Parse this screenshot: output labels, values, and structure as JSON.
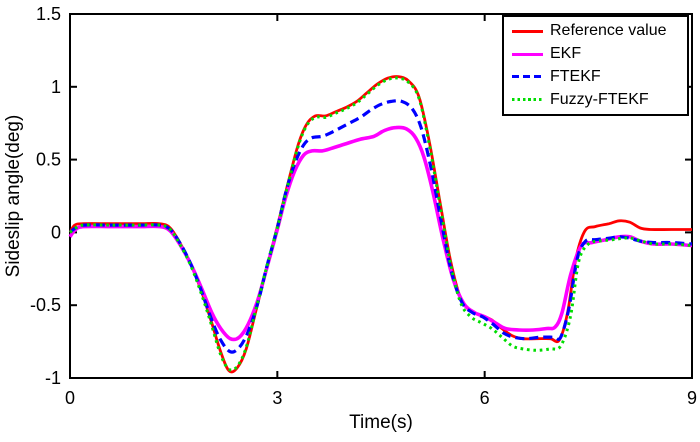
{
  "chart_data": {
    "type": "line",
    "xlabel": "Time(s)",
    "ylabel": "Sideslip angle(deg)",
    "xlim": [
      0,
      9
    ],
    "ylim": [
      -1,
      1.5
    ],
    "xticks": [
      0,
      3,
      6,
      9
    ],
    "yticks": [
      -1,
      -0.5,
      0,
      0.5,
      1,
      1.5
    ],
    "grid": false,
    "axis_color": "#000000",
    "background": "#ffffff",
    "legend": {
      "position": "top-right",
      "border_color": "#000000",
      "background": "#ffffff"
    },
    "series": [
      {
        "id": "reference-value",
        "name": "Reference value",
        "color": "#ff0000",
        "line_style": "solid",
        "width": 2.8,
        "points": [
          [
            0,
            0
          ],
          [
            0.07,
            0.05
          ],
          [
            0.2,
            0.06
          ],
          [
            0.6,
            0.06
          ],
          [
            1.0,
            0.06
          ],
          [
            1.3,
            0.06
          ],
          [
            1.45,
            0.03
          ],
          [
            1.6,
            -0.08
          ],
          [
            1.75,
            -0.22
          ],
          [
            1.9,
            -0.4
          ],
          [
            2.05,
            -0.62
          ],
          [
            2.18,
            -0.82
          ],
          [
            2.3,
            -0.95
          ],
          [
            2.42,
            -0.93
          ],
          [
            2.55,
            -0.8
          ],
          [
            2.7,
            -0.52
          ],
          [
            2.85,
            -0.24
          ],
          [
            3.0,
            0.04
          ],
          [
            3.15,
            0.33
          ],
          [
            3.3,
            0.6
          ],
          [
            3.42,
            0.74
          ],
          [
            3.55,
            0.8
          ],
          [
            3.7,
            0.8
          ],
          [
            3.85,
            0.83
          ],
          [
            4.0,
            0.86
          ],
          [
            4.15,
            0.9
          ],
          [
            4.3,
            0.96
          ],
          [
            4.45,
            1.02
          ],
          [
            4.6,
            1.06
          ],
          [
            4.75,
            1.07
          ],
          [
            4.9,
            1.04
          ],
          [
            5.05,
            0.93
          ],
          [
            5.2,
            0.62
          ],
          [
            5.35,
            0.22
          ],
          [
            5.5,
            -0.18
          ],
          [
            5.65,
            -0.45
          ],
          [
            5.8,
            -0.54
          ],
          [
            5.95,
            -0.57
          ],
          [
            6.1,
            -0.6
          ],
          [
            6.25,
            -0.66
          ],
          [
            6.4,
            -0.71
          ],
          [
            6.55,
            -0.73
          ],
          [
            6.75,
            -0.73
          ],
          [
            6.95,
            -0.73
          ],
          [
            7.08,
            -0.74
          ],
          [
            7.2,
            -0.55
          ],
          [
            7.32,
            -0.18
          ],
          [
            7.45,
            0.01
          ],
          [
            7.6,
            0.04
          ],
          [
            7.8,
            0.06
          ],
          [
            7.95,
            0.08
          ],
          [
            8.1,
            0.07
          ],
          [
            8.25,
            0.03
          ],
          [
            8.4,
            0.02
          ],
          [
            8.7,
            0.02
          ],
          [
            9,
            0.02
          ]
        ]
      },
      {
        "id": "ekf",
        "name": "EKF",
        "color": "#ff00ff",
        "line_style": "solid",
        "width": 3.6,
        "points": [
          [
            0,
            -0.03
          ],
          [
            0.08,
            0.02
          ],
          [
            0.2,
            0.04
          ],
          [
            0.6,
            0.04
          ],
          [
            1.0,
            0.04
          ],
          [
            1.3,
            0.04
          ],
          [
            1.45,
            0.01
          ],
          [
            1.6,
            -0.09
          ],
          [
            1.75,
            -0.22
          ],
          [
            1.9,
            -0.38
          ],
          [
            2.05,
            -0.55
          ],
          [
            2.18,
            -0.66
          ],
          [
            2.32,
            -0.73
          ],
          [
            2.45,
            -0.72
          ],
          [
            2.58,
            -0.63
          ],
          [
            2.72,
            -0.46
          ],
          [
            2.85,
            -0.24
          ],
          [
            3.0,
            0.02
          ],
          [
            3.12,
            0.24
          ],
          [
            3.25,
            0.42
          ],
          [
            3.38,
            0.53
          ],
          [
            3.5,
            0.56
          ],
          [
            3.65,
            0.56
          ],
          [
            3.8,
            0.58
          ],
          [
            4.0,
            0.61
          ],
          [
            4.2,
            0.64
          ],
          [
            4.4,
            0.66
          ],
          [
            4.55,
            0.7
          ],
          [
            4.72,
            0.72
          ],
          [
            4.87,
            0.71
          ],
          [
            5.0,
            0.65
          ],
          [
            5.12,
            0.52
          ],
          [
            5.25,
            0.28
          ],
          [
            5.4,
            -0.05
          ],
          [
            5.55,
            -0.33
          ],
          [
            5.7,
            -0.49
          ],
          [
            5.85,
            -0.55
          ],
          [
            6.0,
            -0.58
          ],
          [
            6.15,
            -0.62
          ],
          [
            6.3,
            -0.66
          ],
          [
            6.5,
            -0.67
          ],
          [
            6.7,
            -0.67
          ],
          [
            6.9,
            -0.66
          ],
          [
            7.02,
            -0.65
          ],
          [
            7.12,
            -0.55
          ],
          [
            7.25,
            -0.28
          ],
          [
            7.4,
            -0.09
          ],
          [
            7.55,
            -0.07
          ],
          [
            7.75,
            -0.05
          ],
          [
            7.95,
            -0.03
          ],
          [
            8.1,
            -0.03
          ],
          [
            8.25,
            -0.06
          ],
          [
            8.45,
            -0.08
          ],
          [
            8.7,
            -0.08
          ],
          [
            9,
            -0.09
          ]
        ]
      },
      {
        "id": "ftekf",
        "name": "FTEKF",
        "color": "#0000ff",
        "line_style": "dashed",
        "width": 3.2,
        "points": [
          [
            0,
            0
          ],
          [
            0.08,
            0.03
          ],
          [
            0.2,
            0.05
          ],
          [
            0.6,
            0.05
          ],
          [
            1.0,
            0.05
          ],
          [
            1.3,
            0.05
          ],
          [
            1.45,
            0.02
          ],
          [
            1.6,
            -0.08
          ],
          [
            1.75,
            -0.22
          ],
          [
            1.9,
            -0.4
          ],
          [
            2.05,
            -0.6
          ],
          [
            2.18,
            -0.74
          ],
          [
            2.32,
            -0.82
          ],
          [
            2.45,
            -0.79
          ],
          [
            2.58,
            -0.68
          ],
          [
            2.72,
            -0.48
          ],
          [
            2.85,
            -0.23
          ],
          [
            3.0,
            0.03
          ],
          [
            3.12,
            0.27
          ],
          [
            3.25,
            0.47
          ],
          [
            3.38,
            0.6
          ],
          [
            3.5,
            0.65
          ],
          [
            3.65,
            0.66
          ],
          [
            3.8,
            0.69
          ],
          [
            4.0,
            0.74
          ],
          [
            4.2,
            0.79
          ],
          [
            4.35,
            0.84
          ],
          [
            4.5,
            0.88
          ],
          [
            4.65,
            0.9
          ],
          [
            4.8,
            0.9
          ],
          [
            4.95,
            0.85
          ],
          [
            5.08,
            0.72
          ],
          [
            5.22,
            0.45
          ],
          [
            5.37,
            0.08
          ],
          [
            5.52,
            -0.27
          ],
          [
            5.67,
            -0.48
          ],
          [
            5.82,
            -0.55
          ],
          [
            5.97,
            -0.58
          ],
          [
            6.12,
            -0.63
          ],
          [
            6.27,
            -0.69
          ],
          [
            6.42,
            -0.72
          ],
          [
            6.6,
            -0.73
          ],
          [
            6.8,
            -0.72
          ],
          [
            7.0,
            -0.72
          ],
          [
            7.1,
            -0.72
          ],
          [
            7.22,
            -0.52
          ],
          [
            7.34,
            -0.18
          ],
          [
            7.46,
            -0.06
          ],
          [
            7.6,
            -0.05
          ],
          [
            7.8,
            -0.04
          ],
          [
            7.95,
            -0.03
          ],
          [
            8.1,
            -0.04
          ],
          [
            8.25,
            -0.06
          ],
          [
            8.45,
            -0.07
          ],
          [
            8.7,
            -0.07
          ],
          [
            9,
            -0.08
          ]
        ]
      },
      {
        "id": "fuzzy-ftekf",
        "name": "Fuzzy-FTEKF",
        "color": "#00dd00",
        "line_style": "dotted",
        "width": 3.0,
        "points": [
          [
            0,
            0
          ],
          [
            0.08,
            0.03
          ],
          [
            0.2,
            0.05
          ],
          [
            0.6,
            0.05
          ],
          [
            1.0,
            0.05
          ],
          [
            1.3,
            0.05
          ],
          [
            1.45,
            0.02
          ],
          [
            1.6,
            -0.09
          ],
          [
            1.75,
            -0.23
          ],
          [
            1.9,
            -0.42
          ],
          [
            2.05,
            -0.64
          ],
          [
            2.18,
            -0.84
          ],
          [
            2.3,
            -0.94
          ],
          [
            2.42,
            -0.92
          ],
          [
            2.55,
            -0.79
          ],
          [
            2.7,
            -0.51
          ],
          [
            2.85,
            -0.23
          ],
          [
            3.0,
            0.03
          ],
          [
            3.15,
            0.32
          ],
          [
            3.3,
            0.59
          ],
          [
            3.42,
            0.73
          ],
          [
            3.55,
            0.79
          ],
          [
            3.7,
            0.79
          ],
          [
            3.85,
            0.82
          ],
          [
            4.0,
            0.85
          ],
          [
            4.15,
            0.89
          ],
          [
            4.3,
            0.95
          ],
          [
            4.45,
            1.01
          ],
          [
            4.6,
            1.05
          ],
          [
            4.75,
            1.06
          ],
          [
            4.9,
            1.03
          ],
          [
            5.05,
            0.92
          ],
          [
            5.2,
            0.6
          ],
          [
            5.35,
            0.2
          ],
          [
            5.5,
            -0.2
          ],
          [
            5.65,
            -0.48
          ],
          [
            5.8,
            -0.58
          ],
          [
            5.95,
            -0.62
          ],
          [
            6.1,
            -0.66
          ],
          [
            6.25,
            -0.72
          ],
          [
            6.4,
            -0.78
          ],
          [
            6.55,
            -0.8
          ],
          [
            6.75,
            -0.81
          ],
          [
            6.95,
            -0.8
          ],
          [
            7.1,
            -0.78
          ],
          [
            7.24,
            -0.58
          ],
          [
            7.36,
            -0.2
          ],
          [
            7.5,
            -0.08
          ],
          [
            7.65,
            -0.06
          ],
          [
            7.85,
            -0.05
          ],
          [
            8.0,
            -0.04
          ],
          [
            8.12,
            -0.04
          ],
          [
            8.27,
            -0.06
          ],
          [
            8.45,
            -0.08
          ],
          [
            8.7,
            -0.08
          ],
          [
            9,
            -0.09
          ]
        ]
      }
    ]
  }
}
